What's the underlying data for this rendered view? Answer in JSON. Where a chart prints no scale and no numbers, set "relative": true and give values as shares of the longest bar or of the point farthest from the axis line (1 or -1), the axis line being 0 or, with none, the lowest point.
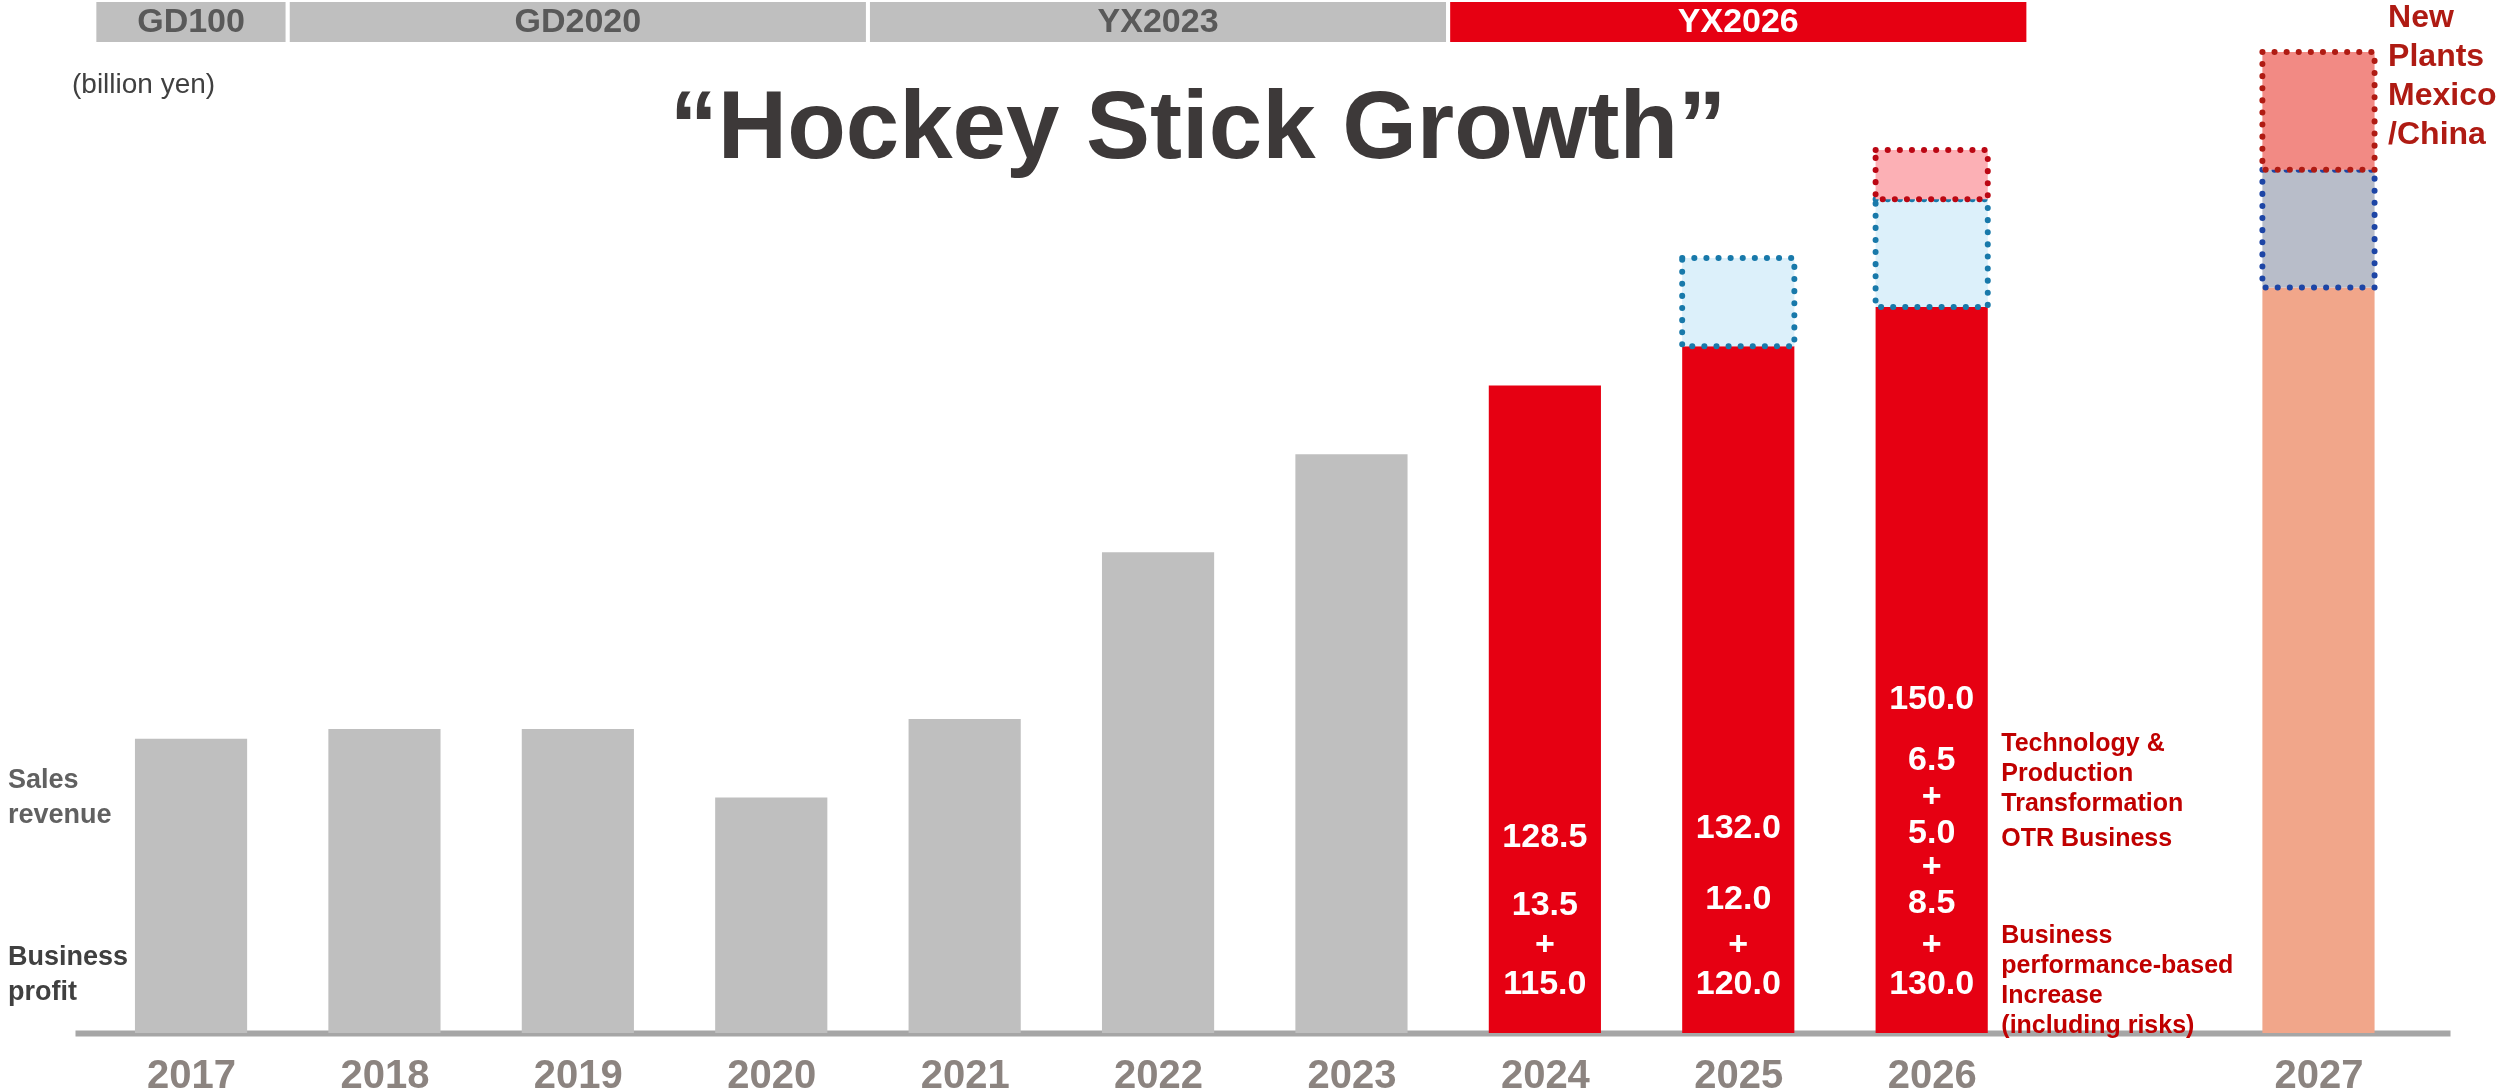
{
  "chart_data": {
    "type": "bar",
    "title": "“Hockey Stick Growth”",
    "relative": true,
    "stacked": true,
    "categories": [
      "2017",
      "2018",
      "2019",
      "2020",
      "2021",
      "2022",
      "2023",
      "2024",
      "2025",
      "2026",
      null,
      "2027"
    ],
    "series": [
      {
        "name": "Sales revenue",
        "values": [
          0.3,
          0.31,
          0.31,
          0.24,
          0.32,
          0.49,
          0.59,
          0.66,
          0.7,
          0.74,
          null,
          0.76
        ],
        "colors": [
          "#bfbfbf",
          "#bfbfbf",
          "#bfbfbf",
          "#bfbfbf",
          "#bfbfbf",
          "#bfbfbf",
          "#bfbfbf",
          "#e60012",
          "#e60012",
          "#e60012",
          null,
          "#f1a68a"
        ]
      },
      {
        "values": [
          null,
          null,
          null,
          null,
          null,
          null,
          null,
          null,
          0.09,
          0.11,
          null,
          0.12
        ],
        "colors": [
          null,
          null,
          null,
          null,
          null,
          null,
          null,
          null,
          "#dcf0fa",
          "#dcf0fa",
          null,
          "#b8bdc9"
        ]
      },
      {
        "name": "New Plants Mexico /China",
        "values": [
          null,
          null,
          null,
          null,
          null,
          null,
          null,
          null,
          null,
          0.05,
          null,
          0.12
        ],
        "colors": [
          null,
          null,
          null,
          null,
          null,
          null,
          null,
          null,
          null,
          "#fcb0b5",
          null,
          "#f28a84"
        ]
      }
    ],
    "annotations": [
      "GD100",
      "GD2020",
      "YX2023",
      "YX2026",
      "(billion yen)",
      "Business profit",
      "128.5",
      "13.5",
      "+",
      "115.0",
      "132.0",
      "12.0",
      "+",
      "120.0",
      "150.0",
      "6.5",
      "+",
      "5.0",
      "+",
      "8.5",
      "+",
      "130.0",
      "Technology & Production Transformation",
      "OTR Business",
      "Business performance-based Increase (including risks)"
    ]
  }
}
